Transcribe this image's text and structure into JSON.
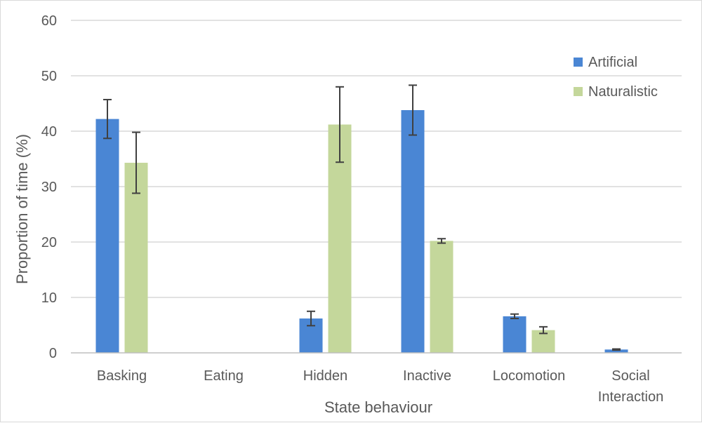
{
  "chart_data": {
    "type": "bar",
    "title": "",
    "xlabel": "State behaviour",
    "ylabel": "Proportion of time (%)",
    "ylim": [
      0,
      60
    ],
    "yticks": [
      0,
      10,
      20,
      30,
      40,
      50,
      60
    ],
    "grid": true,
    "legend_position": "top-right",
    "categories": [
      "Basking",
      "Eating",
      "Hidden",
      "Inactive",
      "Locomotion",
      "Social Interaction"
    ],
    "series": [
      {
        "name": "Artificial",
        "color": "#4a86d4",
        "values": [
          42.2,
          0,
          6.2,
          43.8,
          6.6,
          0.6
        ],
        "errors": [
          3.5,
          0,
          1.3,
          4.5,
          0.4,
          0.1
        ]
      },
      {
        "name": "Naturalistic",
        "color": "#c4d79b",
        "values": [
          34.3,
          0,
          41.2,
          20.2,
          4.1,
          0
        ],
        "errors": [
          5.5,
          0,
          6.8,
          0.4,
          0.6,
          0
        ]
      }
    ]
  }
}
